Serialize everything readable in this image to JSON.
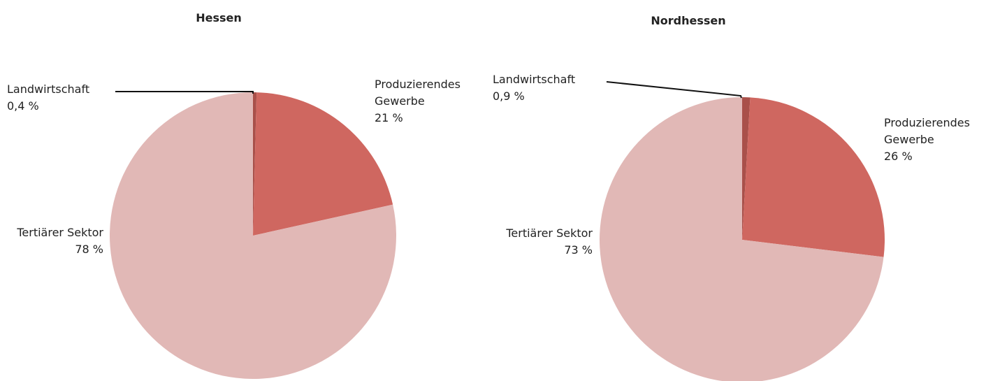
{
  "chart_data": [
    {
      "type": "pie",
      "title": "Hessen",
      "categories": [
        "Landwirtschaft",
        "Produzierendes Gewerbe",
        "Tertiärer Sektor"
      ],
      "values": [
        0.4,
        21,
        78
      ],
      "value_labels": [
        "0,4 %",
        "21 %",
        "78 %"
      ],
      "colors": [
        "#a9504a",
        "#cf6760",
        "#e1b8b6"
      ]
    },
    {
      "type": "pie",
      "title": "Nordhessen",
      "categories": [
        "Landwirtschaft",
        "Produzierendes Gewerbe",
        "Tertiärer Sektor"
      ],
      "values": [
        0.9,
        26,
        73
      ],
      "value_labels": [
        "0,9 %",
        "26 %",
        "73 %"
      ],
      "colors": [
        "#a9504a",
        "#cf6760",
        "#e1b8b6"
      ]
    }
  ]
}
